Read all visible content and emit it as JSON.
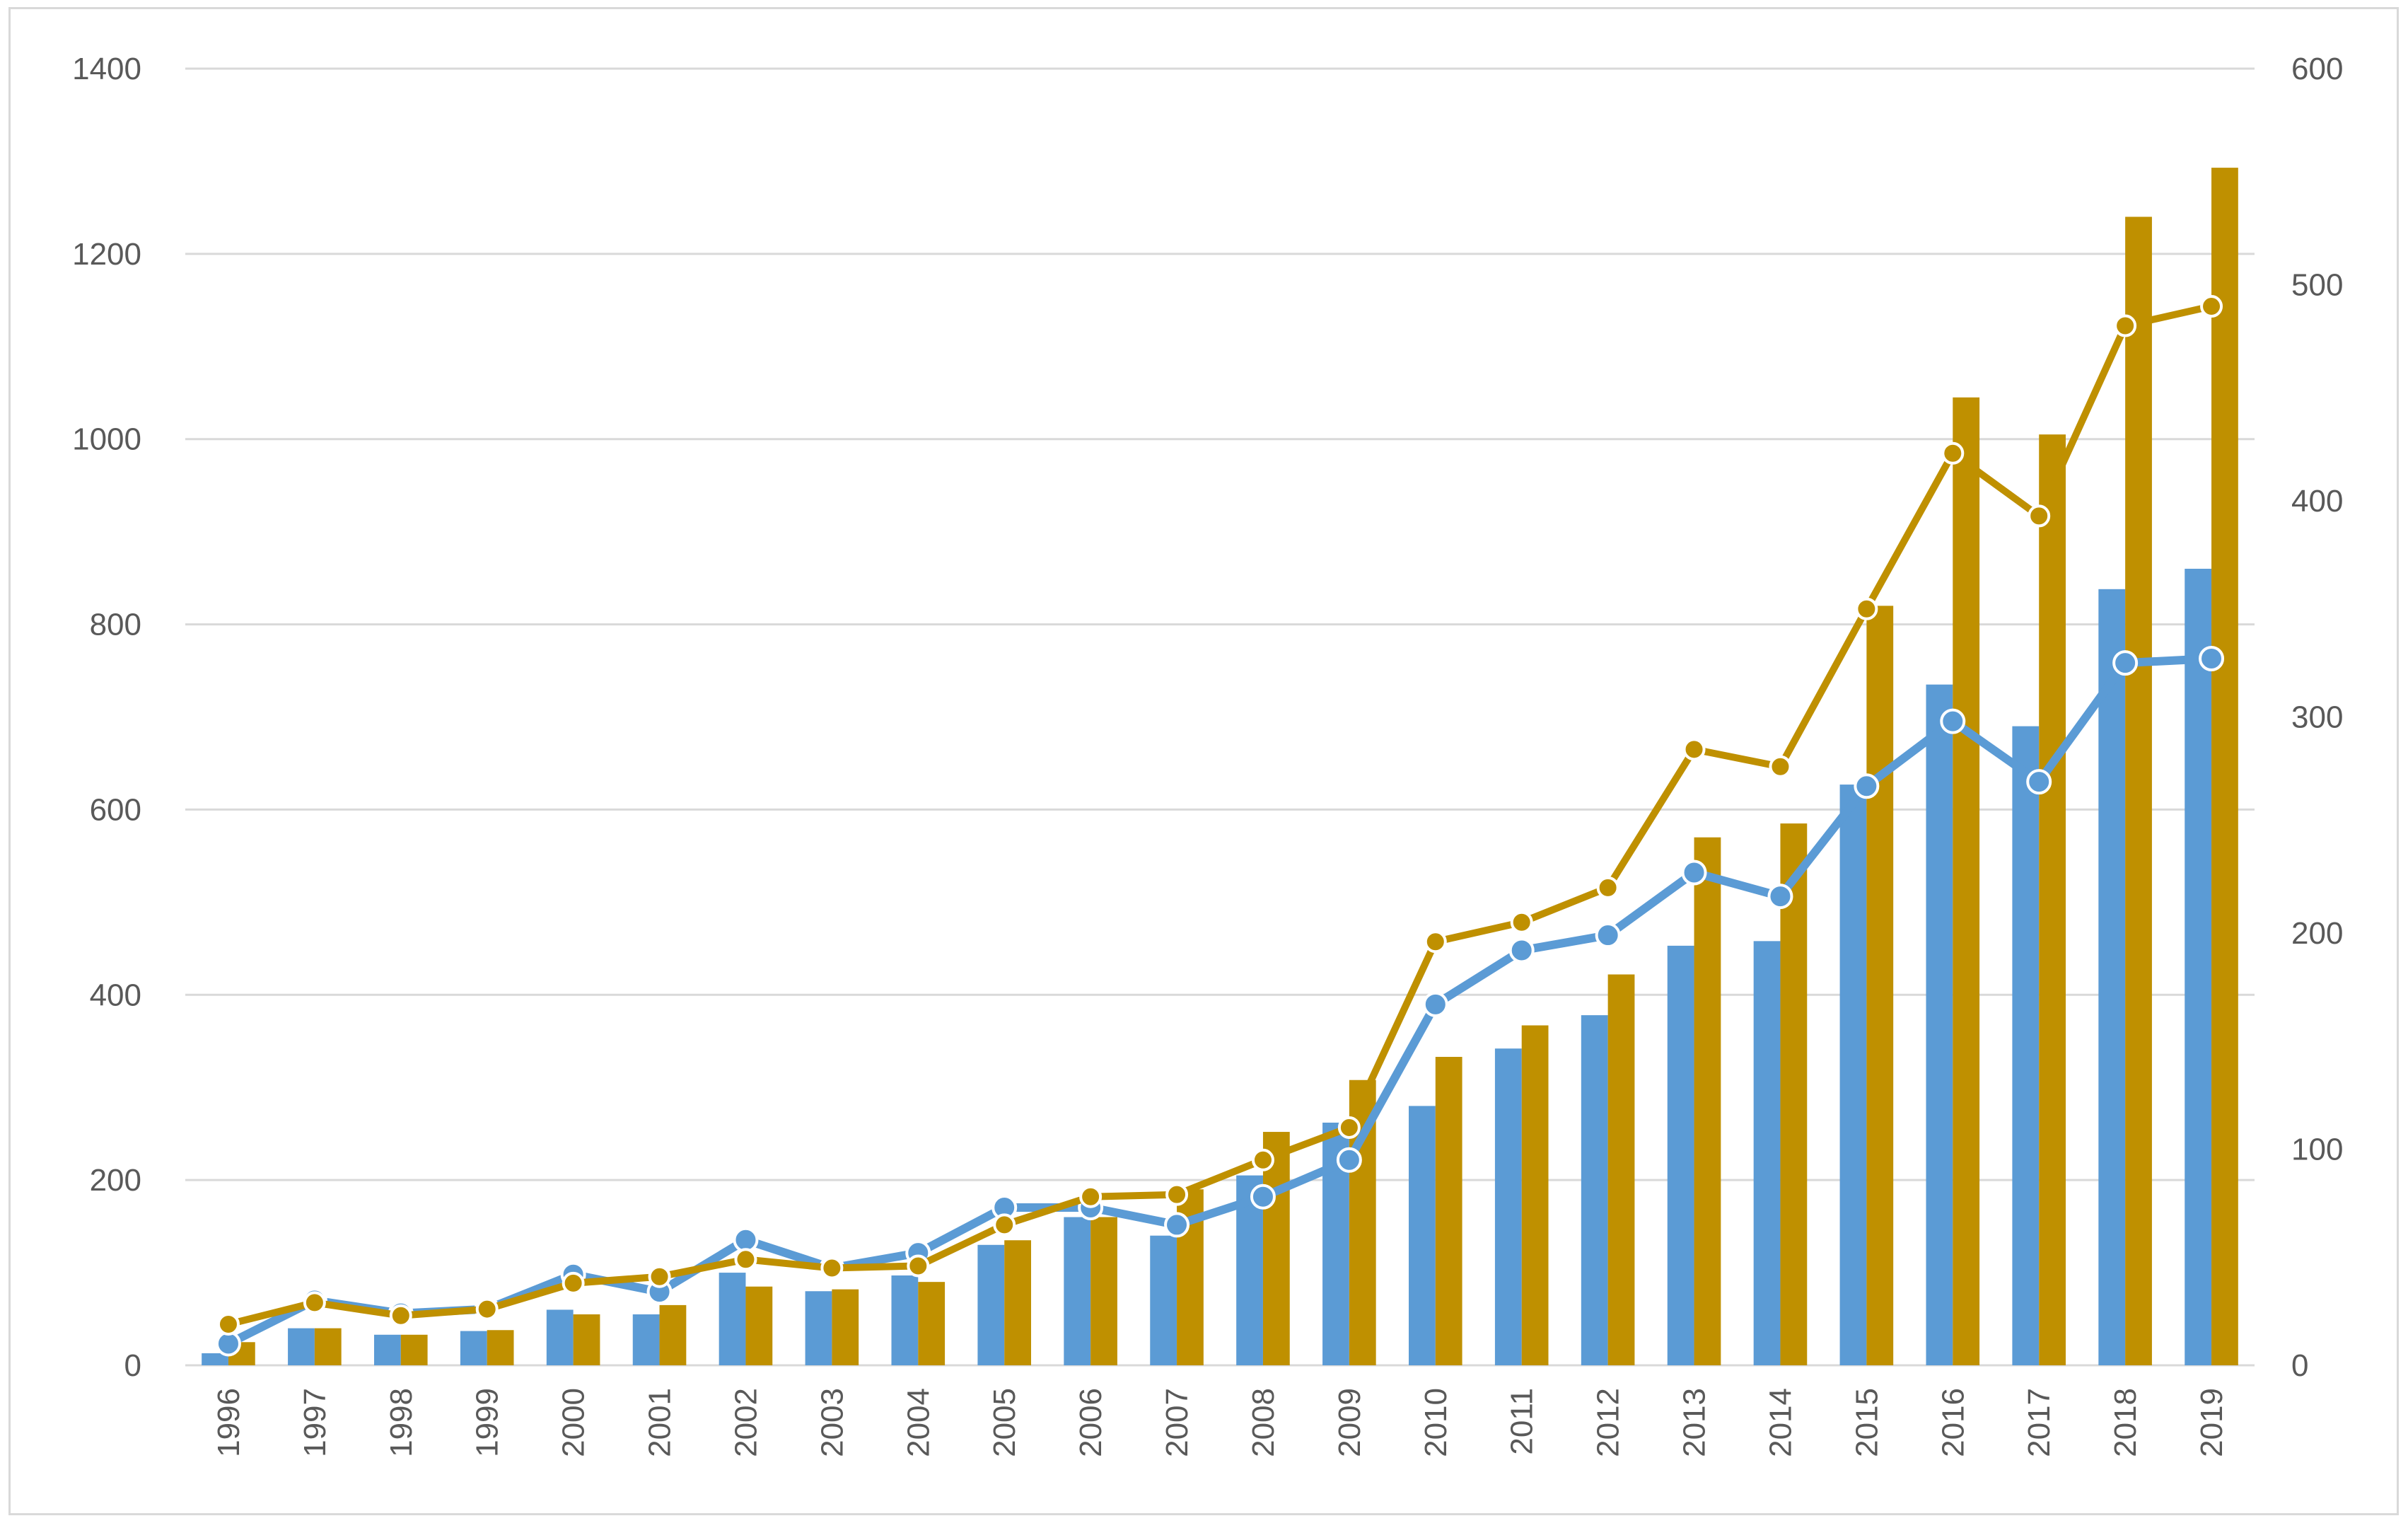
{
  "chart_data": {
    "type": "bar",
    "title": "",
    "xlabel": "",
    "ylabel": "",
    "categories": [
      "1996",
      "1997",
      "1998",
      "1999",
      "2000",
      "2001",
      "2002",
      "2003",
      "2004",
      "2005",
      "2006",
      "2007",
      "2008",
      "2009",
      "2010",
      "2011",
      "2012",
      "2013",
      "2014",
      "2015",
      "2016",
      "2017",
      "2018",
      "2019"
    ],
    "ylim": [
      0,
      1400
    ],
    "y_ticks": [
      0,
      200,
      400,
      600,
      800,
      1000,
      1200,
      1400
    ],
    "y2lim": [
      0,
      600
    ],
    "y2_ticks": [
      0,
      100,
      200,
      300,
      400,
      500,
      600
    ],
    "grid": true,
    "legend": "none",
    "series": [
      {
        "type": "bar",
        "axis": "left",
        "color": "#5b9bd5",
        "values": [
          13,
          40,
          33,
          37,
          60,
          55,
          100,
          80,
          97,
          130,
          160,
          140,
          205,
          262,
          280,
          342,
          378,
          453,
          458,
          627,
          735,
          690,
          838,
          860
        ]
      },
      {
        "type": "bar",
        "axis": "left",
        "color": "#bf9000",
        "values": [
          25,
          40,
          33,
          38,
          55,
          65,
          85,
          82,
          90,
          135,
          160,
          190,
          252,
          308,
          333,
          367,
          422,
          570,
          585,
          820,
          1045,
          1005,
          1240,
          1293
        ]
      },
      {
        "type": "line",
        "axis": "right",
        "color": "#5b9bd5",
        "values": [
          10,
          30,
          24,
          26,
          42,
          34,
          58,
          45,
          52,
          73,
          73,
          65,
          78,
          95,
          167,
          192,
          199,
          228,
          217,
          268,
          298,
          270,
          325,
          327
        ]
      },
      {
        "type": "line",
        "axis": "right",
        "color": "#bf9000",
        "values": [
          19,
          29,
          23,
          26,
          38,
          41,
          49,
          45,
          46,
          65,
          78,
          79,
          95,
          110,
          196,
          205,
          221,
          285,
          277,
          350,
          422,
          393,
          481,
          490
        ]
      }
    ]
  }
}
